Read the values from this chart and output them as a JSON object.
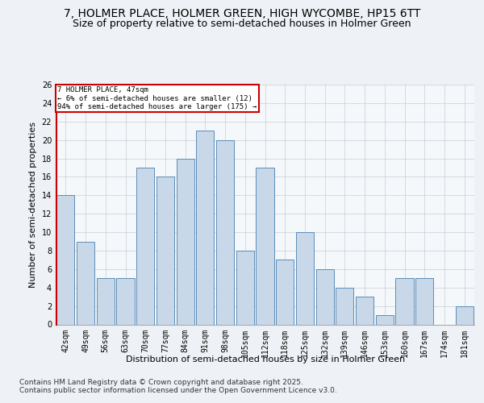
{
  "title": "7, HOLMER PLACE, HOLMER GREEN, HIGH WYCOMBE, HP15 6TT",
  "subtitle": "Size of property relative to semi-detached houses in Holmer Green",
  "xlabel": "Distribution of semi-detached houses by size in Holmer Green",
  "ylabel": "Number of semi-detached properties",
  "categories": [
    "42sqm",
    "49sqm",
    "56sqm",
    "63sqm",
    "70sqm",
    "77sqm",
    "84sqm",
    "91sqm",
    "98sqm",
    "105sqm",
    "112sqm",
    "118sqm",
    "125sqm",
    "132sqm",
    "139sqm",
    "146sqm",
    "153sqm",
    "160sqm",
    "167sqm",
    "174sqm",
    "181sqm"
  ],
  "values": [
    14,
    9,
    5,
    5,
    17,
    16,
    18,
    21,
    20,
    8,
    17,
    7,
    10,
    6,
    4,
    3,
    1,
    5,
    5,
    0,
    2
  ],
  "bar_color": "#c8d8e8",
  "bar_edge_color": "#5b8db8",
  "highlight_index": 0,
  "highlight_color": "#cc0000",
  "annotation_title": "7 HOLMER PLACE, 47sqm",
  "annotation_line1": "← 6% of semi-detached houses are smaller (12)",
  "annotation_line2": "94% of semi-detached houses are larger (175) →",
  "annotation_box_color": "#cc0000",
  "ylim": [
    0,
    26
  ],
  "yticks": [
    0,
    2,
    4,
    6,
    8,
    10,
    12,
    14,
    16,
    18,
    20,
    22,
    24,
    26
  ],
  "footer_line1": "Contains HM Land Registry data © Crown copyright and database right 2025.",
  "footer_line2": "Contains public sector information licensed under the Open Government Licence v3.0.",
  "bg_color": "#eef2f6",
  "plot_bg_color": "#f5f8fb",
  "title_fontsize": 10,
  "subtitle_fontsize": 9,
  "axis_label_fontsize": 8,
  "tick_fontsize": 7,
  "footer_fontsize": 6.5
}
